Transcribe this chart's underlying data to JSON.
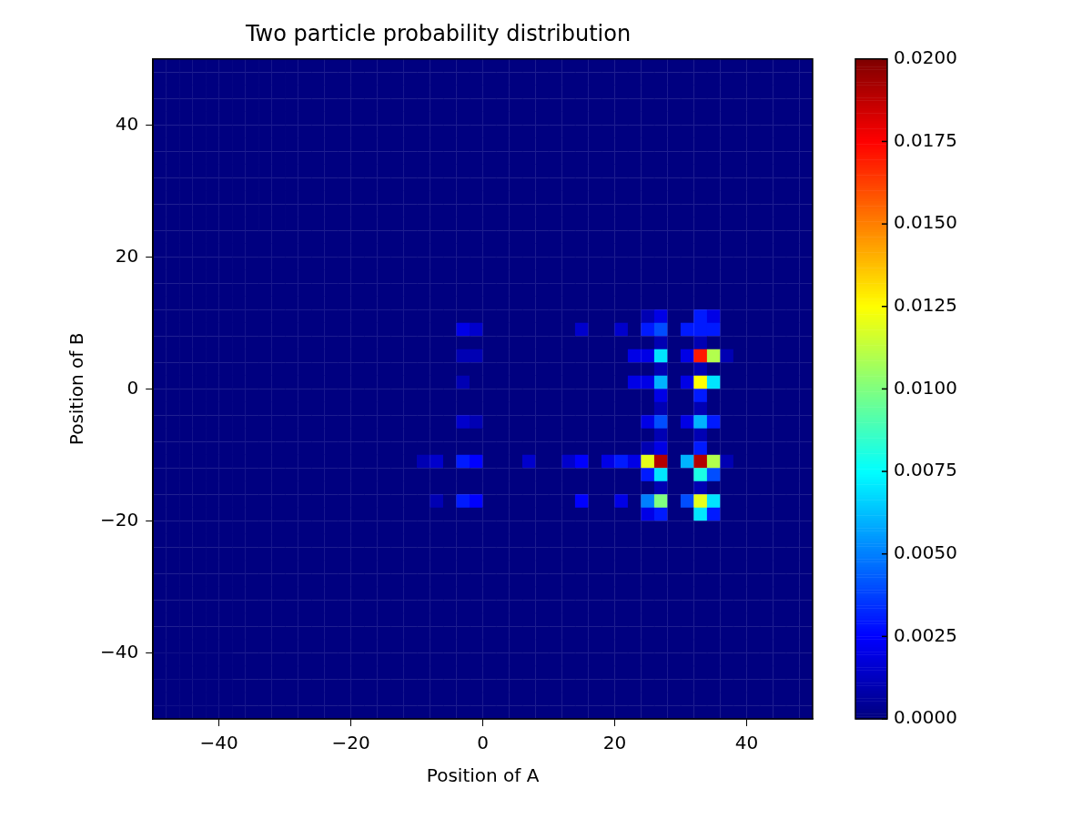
{
  "chart_data": {
    "type": "heatmap",
    "title": "Two particle probability distribution",
    "xlabel": "Position of A",
    "ylabel": "Position of B",
    "x": [
      -49,
      -47,
      -45,
      -43,
      -41,
      -39,
      -37,
      -35,
      -33,
      -31,
      -29,
      -27,
      -25,
      -23,
      -21,
      -19,
      -17,
      -15,
      -13,
      -11,
      -9,
      -7,
      -5,
      -3,
      -1,
      1,
      3,
      5,
      7,
      9,
      11,
      13,
      15,
      17,
      19,
      21,
      23,
      25,
      27,
      29,
      31,
      33,
      35,
      37,
      39,
      41,
      43,
      45,
      47,
      49
    ],
    "y": [
      49,
      47,
      45,
      43,
      41,
      39,
      37,
      35,
      33,
      31,
      29,
      27,
      25,
      23,
      21,
      19,
      17,
      15,
      13,
      11,
      9,
      7,
      5,
      3,
      1,
      -1,
      -3,
      -5,
      -7,
      -9,
      -11,
      -13,
      -15,
      -17,
      -19,
      -21,
      -23,
      -25,
      -27,
      -29,
      -31,
      -33,
      -35,
      -37,
      -39,
      -41,
      -43,
      -45,
      -47,
      -49
    ],
    "xlim": [
      -50,
      50
    ],
    "ylim": [
      -50,
      50
    ],
    "xticks": [
      {
        "value": -40,
        "label": "−40"
      },
      {
        "value": -20,
        "label": "−20"
      },
      0,
      20,
      40
    ],
    "yticks": [
      {
        "value": -40,
        "label": "−40"
      },
      {
        "value": -20,
        "label": "−20"
      },
      0,
      20,
      40
    ],
    "clim": [
      0,
      0.02
    ],
    "cticks": [
      {
        "value": 0,
        "label": "0.0000"
      },
      {
        "value": 0.0025,
        "label": "0.0025"
      },
      {
        "value": 0.005,
        "label": "0.0050"
      },
      {
        "value": 0.0075,
        "label": "0.0075"
      },
      {
        "value": 0.01,
        "label": "0.0100"
      },
      {
        "value": 0.0125,
        "label": "0.0125"
      },
      {
        "value": 0.015,
        "label": "0.0150"
      },
      {
        "value": 0.0175,
        "label": "0.0175"
      },
      {
        "value": 0.02,
        "label": "0.0200"
      }
    ],
    "cells": [
      [
        0,
        0,
        0,
        0,
        0,
        0,
        0,
        0,
        0,
        0,
        0,
        0,
        0,
        0,
        0,
        0,
        0,
        0,
        0,
        0,
        0,
        0,
        0,
        0,
        0,
        0,
        0,
        0,
        0,
        0,
        0,
        0,
        0,
        0,
        0,
        0,
        0,
        0,
        0,
        0,
        0,
        0,
        0,
        0,
        0,
        0,
        0,
        0,
        0,
        0
      ],
      [
        0,
        0,
        0,
        0,
        0,
        0,
        0,
        0,
        0,
        0,
        0,
        0,
        0,
        0,
        0,
        0,
        0,
        0,
        0,
        0,
        0,
        0,
        0,
        0,
        0,
        0,
        0,
        0,
        0,
        0,
        0,
        0,
        0,
        0,
        0,
        0,
        0,
        0,
        0,
        0,
        0,
        0,
        0,
        0,
        0,
        0,
        0,
        0,
        0,
        0
      ],
      [
        0,
        0,
        0,
        0,
        0,
        0,
        0,
        0,
        0,
        0,
        0,
        0,
        0,
        0,
        0,
        0,
        0,
        0,
        0,
        0,
        0,
        0,
        0,
        0,
        0,
        0,
        0,
        0,
        0,
        0,
        0,
        0,
        0,
        0,
        0,
        0,
        0,
        0,
        0,
        0,
        0,
        0,
        0,
        0,
        0,
        0,
        0,
        0,
        0,
        0
      ],
      [
        0,
        0,
        0,
        0,
        0,
        0,
        0,
        0,
        0,
        0,
        0,
        0,
        0,
        0,
        0,
        0,
        0,
        0,
        0,
        0,
        0,
        0,
        0,
        0,
        0,
        0,
        0,
        0,
        0,
        0,
        0,
        0,
        0,
        0,
        0,
        0,
        0,
        0,
        0,
        0,
        0,
        0,
        0,
        0,
        0,
        0,
        0,
        0,
        0,
        0
      ],
      [
        0,
        0,
        0,
        0,
        0,
        0,
        0,
        0,
        0,
        0,
        0,
        0,
        0,
        0,
        0,
        0,
        0,
        0,
        0,
        0,
        0,
        0,
        0,
        0,
        0,
        0,
        0,
        0,
        0,
        0,
        0,
        0,
        0,
        0,
        0,
        0,
        0,
        0,
        0,
        0,
        0,
        0,
        0,
        0,
        0,
        0,
        0,
        0,
        0,
        0
      ],
      [
        0,
        0,
        0,
        0,
        0,
        0,
        0,
        0,
        0,
        0,
        0,
        0,
        0,
        0,
        0,
        0,
        0,
        0,
        0,
        0,
        0,
        0,
        0,
        0,
        0,
        0,
        0,
        0,
        0,
        0,
        0,
        0,
        0,
        0,
        0,
        0,
        0,
        0,
        0,
        0,
        0,
        0,
        0,
        0,
        0,
        0,
        0,
        0,
        0,
        0
      ],
      [
        0,
        0,
        0,
        0,
        0,
        0,
        0,
        0,
        0,
        0,
        0,
        0,
        0,
        0,
        0,
        0,
        0,
        0,
        0,
        0,
        0,
        0,
        0,
        0,
        0,
        0,
        0,
        0,
        0,
        0,
        0,
        0,
        0,
        0,
        0,
        0,
        0,
        0,
        0,
        0,
        0,
        0,
        0,
        0,
        0,
        0,
        0,
        0,
        0,
        0
      ],
      [
        0,
        0,
        0,
        0,
        0,
        0,
        0,
        0,
        0,
        0,
        0,
        0,
        0,
        0,
        0,
        0,
        0,
        0,
        0,
        0,
        0,
        0,
        0,
        0,
        0,
        0,
        0,
        0,
        0,
        0,
        0,
        0,
        0,
        0,
        0,
        0,
        0,
        0,
        0,
        0,
        0,
        0,
        0,
        0,
        0,
        0,
        0,
        0,
        0,
        0
      ],
      [
        0,
        0,
        0,
        0,
        0,
        0,
        0,
        0,
        0,
        0,
        0,
        0,
        0,
        0,
        0,
        0,
        0,
        0,
        0,
        0,
        0,
        0,
        0,
        0,
        0,
        0,
        0,
        0,
        0,
        0,
        0,
        0,
        0,
        0,
        0,
        0,
        0,
        0,
        0,
        0,
        0,
        0,
        0,
        0,
        0,
        0,
        0,
        0,
        0,
        0
      ],
      [
        0,
        0,
        0,
        0,
        0,
        0,
        0,
        0,
        0,
        0,
        0,
        0,
        0,
        0,
        0,
        0,
        0,
        0,
        0,
        0,
        0,
        0,
        0,
        0,
        0,
        0,
        0,
        0,
        0,
        0,
        0,
        0,
        0,
        0,
        0,
        0,
        0,
        0,
        0,
        0,
        0,
        0,
        0,
        0,
        0,
        0,
        0,
        0,
        0,
        0
      ],
      [
        0,
        0,
        0,
        0,
        0,
        0,
        0,
        0,
        0,
        0,
        0,
        0,
        0,
        0,
        0,
        0,
        0,
        0,
        0,
        0,
        0,
        0,
        0,
        0,
        0,
        0,
        0,
        0,
        0,
        0,
        0,
        0,
        0,
        0,
        0,
        0,
        0,
        0,
        0,
        0,
        0,
        0,
        0,
        0,
        0,
        0,
        0,
        0,
        0,
        0
      ],
      [
        0,
        0,
        0,
        0,
        0,
        0,
        0,
        0,
        0,
        0,
        0,
        0,
        0,
        0,
        0,
        0,
        0,
        0,
        0,
        0,
        0,
        0,
        0,
        0,
        0,
        0,
        0,
        0,
        0,
        0,
        0,
        0,
        0,
        0,
        0,
        0,
        0,
        0,
        0,
        0,
        0,
        0,
        0,
        0,
        0,
        0,
        0,
        0,
        0,
        0
      ],
      [
        0,
        0,
        0,
        0,
        0,
        0,
        0,
        0,
        0,
        0,
        0,
        0,
        0,
        0,
        0,
        0,
        0,
        0,
        0,
        0,
        0,
        0,
        0,
        0,
        0,
        0,
        0,
        0,
        0,
        0,
        0,
        0,
        0,
        0,
        0,
        0,
        0,
        0,
        0,
        0,
        0,
        0,
        0,
        0,
        0,
        0,
        0,
        0,
        0,
        0
      ],
      [
        0,
        0,
        0,
        0,
        0,
        0,
        0,
        0,
        0,
        0,
        0,
        0,
        0,
        0,
        0,
        0,
        0,
        0,
        0,
        0,
        0,
        0,
        0,
        0,
        0,
        0,
        0,
        0,
        0,
        0,
        0,
        0,
        0,
        0,
        0,
        0,
        0,
        0,
        0,
        0,
        0,
        0,
        0,
        0,
        0,
        0,
        0,
        0,
        0,
        0
      ],
      [
        0,
        0,
        0,
        0,
        0,
        0,
        0,
        0,
        0,
        0,
        0,
        0,
        0,
        0,
        0,
        0,
        0,
        0,
        0,
        0,
        0,
        0,
        0,
        0,
        0,
        0,
        0,
        0,
        0,
        0,
        0,
        0,
        0,
        0,
        0,
        0,
        0,
        0,
        0,
        0,
        0,
        0,
        0,
        0,
        0,
        0,
        0,
        0,
        0,
        0
      ],
      [
        0,
        0,
        0,
        0,
        0,
        0,
        0,
        0,
        0,
        0,
        0,
        0,
        0,
        0,
        0,
        0,
        0,
        0,
        0,
        0,
        0,
        0,
        0,
        0,
        0,
        0,
        0,
        0,
        0,
        0,
        0,
        0,
        0,
        0,
        0,
        0,
        0,
        0,
        0,
        0,
        0,
        0,
        0,
        0,
        0,
        0,
        0,
        0,
        0,
        0
      ],
      [
        0,
        0,
        0,
        0,
        0,
        0,
        0,
        0,
        0,
        0,
        0,
        0,
        0,
        0,
        0,
        0,
        0,
        0,
        0,
        0,
        0,
        0,
        0,
        0,
        0,
        0,
        0,
        0,
        0,
        0,
        0,
        0,
        0,
        0,
        0,
        0,
        0,
        0,
        0,
        0,
        0,
        0,
        0,
        0,
        0,
        0,
        0,
        0,
        0,
        0
      ],
      [
        0,
        0,
        0,
        0,
        0,
        0,
        0,
        0,
        0,
        0,
        0,
        0,
        0,
        0,
        0,
        0,
        0,
        0,
        0,
        0,
        0,
        0,
        0,
        0,
        0,
        0,
        0,
        0,
        0,
        0,
        0,
        0,
        0,
        0,
        0,
        0,
        0,
        0,
        0,
        0,
        0,
        0,
        0,
        0,
        0,
        0,
        0,
        0,
        0,
        0
      ],
      [
        0,
        0,
        0,
        0,
        0,
        0,
        0,
        0,
        0,
        0,
        0,
        0,
        0,
        0,
        0,
        0,
        0,
        0,
        0,
        0,
        0,
        0,
        0,
        0,
        0,
        0,
        0,
        0,
        0,
        0,
        0,
        0,
        0,
        0,
        0,
        0,
        0,
        0,
        0,
        0,
        0,
        0,
        0,
        0,
        0,
        0,
        0,
        0,
        0,
        0
      ],
      [
        0,
        0,
        0,
        0,
        0,
        0,
        0,
        0,
        0,
        0,
        0,
        0,
        0,
        0,
        0,
        0,
        0,
        0,
        0,
        0,
        0,
        0,
        0,
        0,
        0,
        0,
        0,
        0,
        0,
        0,
        0,
        0,
        0,
        0,
        0,
        0,
        0,
        0.001,
        0.002,
        0,
        0,
        0.003,
        0.002,
        0,
        0,
        0,
        0,
        0,
        0,
        0
      ],
      [
        0,
        0,
        0,
        0,
        0,
        0,
        0,
        0,
        0,
        0,
        0,
        0,
        0,
        0,
        0,
        0,
        0,
        0,
        0,
        0,
        0,
        0,
        0,
        0.002,
        0.0015,
        0,
        0,
        0,
        0,
        0,
        0,
        0,
        0.0015,
        0,
        0,
        0.0015,
        0,
        0.003,
        0.004,
        0,
        0.003,
        0.003,
        0.003,
        0,
        0,
        0,
        0,
        0,
        0,
        0
      ],
      [
        0,
        0,
        0,
        0,
        0,
        0,
        0,
        0,
        0,
        0,
        0,
        0,
        0,
        0,
        0,
        0,
        0,
        0,
        0,
        0,
        0,
        0,
        0,
        0,
        0,
        0,
        0,
        0,
        0,
        0,
        0,
        0,
        0,
        0,
        0,
        0,
        0,
        0,
        0.001,
        0,
        0,
        0.001,
        0,
        0,
        0,
        0,
        0,
        0,
        0,
        0
      ],
      [
        0,
        0,
        0,
        0,
        0,
        0,
        0,
        0,
        0,
        0,
        0,
        0,
        0,
        0,
        0,
        0,
        0,
        0,
        0,
        0,
        0,
        0,
        0,
        0.001,
        0.001,
        0,
        0,
        0,
        0,
        0,
        0,
        0,
        0,
        0,
        0,
        0,
        0.002,
        0.002,
        0.007,
        0,
        0.002,
        0.017,
        0.011,
        0.001,
        0,
        0,
        0,
        0,
        0,
        0
      ],
      [
        0,
        0,
        0,
        0,
        0,
        0,
        0,
        0,
        0,
        0,
        0,
        0,
        0,
        0,
        0,
        0,
        0,
        0,
        0,
        0,
        0,
        0,
        0,
        0,
        0,
        0,
        0,
        0,
        0,
        0,
        0,
        0,
        0,
        0,
        0,
        0,
        0,
        0,
        0.001,
        0,
        0,
        0.001,
        0,
        0,
        0,
        0,
        0,
        0,
        0,
        0
      ],
      [
        0,
        0,
        0,
        0,
        0,
        0,
        0,
        0,
        0,
        0,
        0,
        0,
        0,
        0,
        0,
        0,
        0,
        0,
        0,
        0,
        0,
        0,
        0,
        0.001,
        0,
        0,
        0,
        0,
        0,
        0,
        0,
        0,
        0,
        0,
        0,
        0,
        0.002,
        0.002,
        0.006,
        0,
        0.002,
        0.0125,
        0.007,
        0,
        0,
        0,
        0,
        0,
        0,
        0
      ],
      [
        0,
        0,
        0,
        0,
        0,
        0,
        0,
        0,
        0,
        0,
        0,
        0,
        0,
        0,
        0,
        0,
        0,
        0,
        0,
        0,
        0,
        0,
        0,
        0,
        0,
        0,
        0,
        0,
        0,
        0,
        0,
        0,
        0,
        0,
        0,
        0,
        0,
        0,
        0.002,
        0,
        0,
        0.003,
        0,
        0,
        0,
        0,
        0,
        0,
        0,
        0
      ],
      [
        0,
        0,
        0,
        0,
        0,
        0,
        0,
        0,
        0,
        0,
        0,
        0,
        0,
        0,
        0,
        0,
        0,
        0,
        0,
        0,
        0,
        0,
        0,
        0,
        0,
        0,
        0,
        0,
        0,
        0,
        0,
        0,
        0,
        0,
        0,
        0,
        0,
        0,
        0.001,
        0,
        0,
        0.001,
        0,
        0,
        0,
        0,
        0,
        0,
        0,
        0
      ],
      [
        0,
        0,
        0,
        0,
        0,
        0,
        0,
        0,
        0,
        0,
        0,
        0,
        0,
        0,
        0,
        0,
        0,
        0,
        0,
        0,
        0,
        0,
        0,
        0.0015,
        0.001,
        0,
        0,
        0,
        0,
        0,
        0,
        0,
        0,
        0,
        0,
        0,
        0,
        0.002,
        0.004,
        0,
        0.002,
        0.006,
        0.003,
        0,
        0,
        0,
        0,
        0,
        0,
        0
      ],
      [
        0,
        0,
        0,
        0,
        0,
        0,
        0,
        0,
        0,
        0,
        0,
        0,
        0,
        0,
        0,
        0,
        0,
        0,
        0,
        0,
        0,
        0,
        0,
        0,
        0,
        0,
        0,
        0,
        0,
        0,
        0,
        0,
        0,
        0,
        0,
        0,
        0,
        0,
        0.001,
        0,
        0,
        0.001,
        0,
        0,
        0,
        0,
        0,
        0,
        0,
        0
      ],
      [
        0,
        0,
        0,
        0,
        0,
        0,
        0,
        0,
        0,
        0,
        0,
        0,
        0,
        0,
        0,
        0,
        0,
        0,
        0,
        0,
        0,
        0,
        0,
        0,
        0,
        0,
        0,
        0,
        0,
        0,
        0,
        0,
        0,
        0,
        0,
        0,
        0,
        0.001,
        0.002,
        0,
        0,
        0.003,
        0,
        0,
        0,
        0,
        0,
        0,
        0,
        0
      ],
      [
        0,
        0,
        0,
        0,
        0,
        0,
        0,
        0,
        0,
        0,
        0,
        0,
        0,
        0,
        0,
        0,
        0,
        0,
        0,
        0,
        0.001,
        0.0015,
        0,
        0.003,
        0.0025,
        0,
        0,
        0,
        0.0015,
        0,
        0,
        0.0015,
        0.0025,
        0,
        0.002,
        0.003,
        0.002,
        0.012,
        0.019,
        0,
        0.006,
        0.019,
        0.011,
        0.001,
        0,
        0,
        0,
        0,
        0,
        0
      ],
      [
        0,
        0,
        0,
        0,
        0,
        0,
        0,
        0,
        0,
        0,
        0,
        0,
        0,
        0,
        0,
        0,
        0,
        0,
        0,
        0,
        0,
        0,
        0,
        0,
        0,
        0,
        0,
        0,
        0,
        0,
        0,
        0,
        0,
        0,
        0,
        0,
        0,
        0.003,
        0.007,
        0,
        0,
        0.008,
        0.004,
        0,
        0,
        0,
        0,
        0,
        0,
        0
      ],
      [
        0,
        0,
        0,
        0,
        0,
        0,
        0,
        0,
        0,
        0,
        0,
        0,
        0,
        0,
        0,
        0,
        0,
        0,
        0,
        0,
        0,
        0,
        0,
        0,
        0,
        0,
        0,
        0,
        0,
        0,
        0,
        0,
        0,
        0,
        0,
        0,
        0,
        0,
        0.001,
        0,
        0,
        0.001,
        0,
        0,
        0,
        0,
        0,
        0,
        0,
        0
      ],
      [
        0,
        0,
        0,
        0,
        0,
        0,
        0,
        0,
        0,
        0,
        0,
        0,
        0,
        0,
        0,
        0,
        0,
        0,
        0,
        0,
        0,
        0.001,
        0,
        0.003,
        0.0025,
        0,
        0,
        0,
        0,
        0,
        0,
        0,
        0.0025,
        0,
        0,
        0.002,
        0,
        0.005,
        0.01,
        0,
        0.004,
        0.012,
        0.007,
        0,
        0,
        0,
        0,
        0,
        0,
        0
      ],
      [
        0,
        0,
        0,
        0,
        0,
        0,
        0,
        0,
        0,
        0,
        0,
        0,
        0,
        0,
        0,
        0,
        0,
        0,
        0,
        0,
        0,
        0,
        0,
        0,
        0,
        0,
        0,
        0,
        0,
        0,
        0,
        0,
        0,
        0,
        0,
        0,
        0,
        0.002,
        0.003,
        0,
        0,
        0.007,
        0.003,
        0,
        0,
        0,
        0,
        0,
        0,
        0
      ],
      [
        0,
        0,
        0,
        0,
        0,
        0,
        0,
        0,
        0,
        0,
        0,
        0,
        0,
        0,
        0,
        0,
        0,
        0,
        0,
        0,
        0,
        0,
        0,
        0,
        0,
        0,
        0,
        0,
        0,
        0,
        0,
        0,
        0,
        0,
        0,
        0,
        0,
        0,
        0,
        0,
        0,
        0,
        0,
        0,
        0,
        0,
        0,
        0,
        0,
        0
      ],
      [
        0,
        0,
        0,
        0,
        0,
        0,
        0,
        0,
        0,
        0,
        0,
        0,
        0,
        0,
        0,
        0,
        0,
        0,
        0,
        0,
        0,
        0,
        0,
        0,
        0,
        0,
        0,
        0,
        0,
        0,
        0,
        0,
        0,
        0,
        0,
        0,
        0,
        0,
        0,
        0,
        0,
        0,
        0,
        0,
        0,
        0,
        0,
        0,
        0,
        0
      ],
      [
        0,
        0,
        0,
        0,
        0,
        0,
        0,
        0,
        0,
        0,
        0,
        0,
        0,
        0,
        0,
        0,
        0,
        0,
        0,
        0,
        0,
        0,
        0,
        0,
        0,
        0,
        0,
        0,
        0,
        0,
        0,
        0,
        0,
        0,
        0,
        0,
        0,
        0,
        0,
        0,
        0,
        0,
        0,
        0,
        0,
        0,
        0,
        0,
        0,
        0
      ],
      [
        0,
        0,
        0,
        0,
        0,
        0,
        0,
        0,
        0,
        0,
        0,
        0,
        0,
        0,
        0,
        0,
        0,
        0,
        0,
        0,
        0,
        0,
        0,
        0,
        0,
        0,
        0,
        0,
        0,
        0,
        0,
        0,
        0,
        0,
        0,
        0,
        0,
        0,
        0,
        0,
        0,
        0,
        0,
        0,
        0,
        0,
        0,
        0,
        0,
        0
      ],
      [
        0,
        0,
        0,
        0,
        0,
        0,
        0,
        0,
        0,
        0,
        0,
        0,
        0,
        0,
        0,
        0,
        0,
        0,
        0,
        0,
        0,
        0,
        0,
        0,
        0,
        0,
        0,
        0,
        0,
        0,
        0,
        0,
        0,
        0,
        0,
        0,
        0,
        0,
        0,
        0,
        0,
        0,
        0,
        0,
        0,
        0,
        0,
        0,
        0,
        0
      ],
      [
        0,
        0,
        0,
        0,
        0,
        0,
        0,
        0,
        0,
        0,
        0,
        0,
        0,
        0,
        0,
        0,
        0,
        0,
        0,
        0,
        0,
        0,
        0,
        0,
        0,
        0,
        0,
        0,
        0,
        0,
        0,
        0,
        0,
        0,
        0,
        0,
        0,
        0,
        0,
        0,
        0,
        0,
        0,
        0,
        0,
        0,
        0,
        0,
        0,
        0
      ],
      [
        0,
        0,
        0,
        0,
        0,
        0,
        0,
        0,
        0,
        0,
        0,
        0,
        0,
        0,
        0,
        0,
        0,
        0,
        0,
        0,
        0,
        0,
        0,
        0,
        0,
        0,
        0,
        0,
        0,
        0,
        0,
        0,
        0,
        0,
        0,
        0,
        0,
        0,
        0,
        0,
        0,
        0,
        0,
        0,
        0,
        0,
        0,
        0,
        0,
        0
      ],
      [
        0,
        0,
        0,
        0,
        0,
        0,
        0,
        0,
        0,
        0,
        0,
        0,
        0,
        0,
        0,
        0,
        0,
        0,
        0,
        0,
        0,
        0,
        0,
        0,
        0,
        0,
        0,
        0,
        0,
        0,
        0,
        0,
        0,
        0,
        0,
        0,
        0,
        0,
        0,
        0,
        0,
        0,
        0,
        0,
        0,
        0,
        0,
        0,
        0,
        0
      ],
      [
        0,
        0,
        0,
        0,
        0,
        0,
        0,
        0,
        0,
        0,
        0,
        0,
        0,
        0,
        0,
        0,
        0,
        0,
        0,
        0,
        0,
        0,
        0,
        0,
        0,
        0,
        0,
        0,
        0,
        0,
        0,
        0,
        0,
        0,
        0,
        0,
        0,
        0,
        0,
        0,
        0,
        0,
        0,
        0,
        0,
        0,
        0,
        0,
        0,
        0
      ],
      [
        0,
        0,
        0,
        0,
        0,
        0,
        0,
        0,
        0,
        0,
        0,
        0,
        0,
        0,
        0,
        0,
        0,
        0,
        0,
        0,
        0,
        0,
        0,
        0,
        0,
        0,
        0,
        0,
        0,
        0,
        0,
        0,
        0,
        0,
        0,
        0,
        0,
        0,
        0,
        0,
        0,
        0,
        0,
        0,
        0,
        0,
        0,
        0,
        0,
        0
      ],
      [
        0,
        0,
        0,
        0,
        0,
        0,
        0,
        0,
        0,
        0,
        0,
        0,
        0,
        0,
        0,
        0,
        0,
        0,
        0,
        0,
        0,
        0,
        0,
        0,
        0,
        0,
        0,
        0,
        0,
        0,
        0,
        0,
        0,
        0,
        0,
        0,
        0,
        0,
        0,
        0,
        0,
        0,
        0,
        0,
        0,
        0,
        0,
        0,
        0,
        0
      ],
      [
        0,
        0,
        0,
        0,
        0,
        0,
        0,
        0,
        0,
        0,
        0,
        0,
        0,
        0,
        0,
        0,
        0,
        0,
        0,
        0,
        0,
        0,
        0,
        0,
        0,
        0,
        0,
        0,
        0,
        0,
        0,
        0,
        0,
        0,
        0,
        0,
        0,
        0,
        0,
        0,
        0,
        0,
        0,
        0,
        0,
        0,
        0,
        0,
        0,
        0
      ],
      [
        0,
        0,
        0,
        0,
        0,
        0,
        0,
        0,
        0,
        0,
        0,
        0,
        0,
        0,
        0,
        0,
        0,
        0,
        0,
        0,
        0,
        0,
        0,
        0,
        0,
        0,
        0,
        0,
        0,
        0,
        0,
        0,
        0,
        0,
        0,
        0,
        0,
        0,
        0,
        0,
        0,
        0,
        0,
        0,
        0,
        0,
        0,
        0,
        0,
        0
      ],
      [
        0,
        0,
        0,
        0,
        0,
        0,
        0,
        0,
        0,
        0,
        0,
        0,
        0,
        0,
        0,
        0,
        0,
        0,
        0,
        0,
        0,
        0,
        0,
        0,
        0,
        0,
        0,
        0,
        0,
        0,
        0,
        0,
        0,
        0,
        0,
        0,
        0,
        0,
        0,
        0,
        0,
        0,
        0,
        0,
        0,
        0,
        0,
        0,
        0,
        0
      ],
      [
        0,
        0,
        0,
        0,
        0,
        0,
        0,
        0,
        0,
        0,
        0,
        0,
        0,
        0,
        0,
        0,
        0,
        0,
        0,
        0,
        0,
        0,
        0,
        0,
        0,
        0,
        0,
        0,
        0,
        0,
        0,
        0,
        0,
        0,
        0,
        0,
        0,
        0,
        0,
        0,
        0,
        0,
        0,
        0,
        0,
        0,
        0,
        0,
        0,
        0
      ]
    ]
  }
}
